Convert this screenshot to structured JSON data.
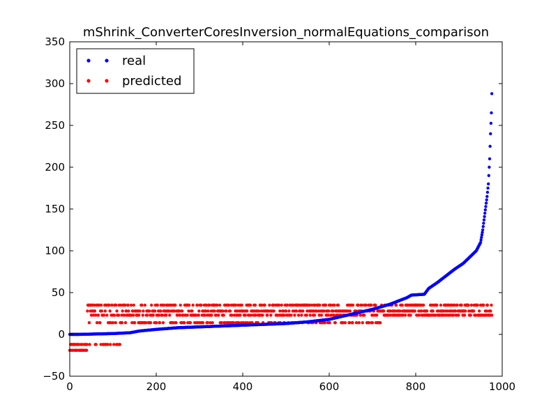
{
  "chart_data": {
    "type": "scatter",
    "title": "mShrink_ConverterCoresInversion_normalEquations_comparison",
    "xlabel": "",
    "ylabel": "",
    "xlim": [
      0,
      1000
    ],
    "ylim": [
      -50,
      350
    ],
    "xticks": [
      0,
      200,
      400,
      600,
      800,
      1000
    ],
    "yticks": [
      -50,
      0,
      50,
      100,
      150,
      200,
      250,
      300,
      350
    ],
    "grid": false,
    "legend_position": "top-left",
    "x_count": 977,
    "series": [
      {
        "name": "real",
        "color": "#0000ff",
        "marker": "circle",
        "description": "sorted ascending values",
        "anchors": [
          [
            0,
            0
          ],
          [
            20,
            0
          ],
          [
            100,
            1
          ],
          [
            140,
            2
          ],
          [
            160,
            4
          ],
          [
            200,
            6
          ],
          [
            250,
            8
          ],
          [
            300,
            9
          ],
          [
            350,
            10
          ],
          [
            400,
            11
          ],
          [
            450,
            12
          ],
          [
            500,
            13
          ],
          [
            550,
            15
          ],
          [
            600,
            18
          ],
          [
            650,
            24
          ],
          [
            700,
            30
          ],
          [
            720,
            33
          ],
          [
            740,
            36
          ],
          [
            760,
            40
          ],
          [
            780,
            44
          ],
          [
            790,
            47
          ],
          [
            820,
            48
          ],
          [
            830,
            55
          ],
          [
            850,
            62
          ],
          [
            870,
            70
          ],
          [
            890,
            78
          ],
          [
            910,
            85
          ],
          [
            930,
            95
          ],
          [
            940,
            100
          ],
          [
            950,
            110
          ],
          [
            955,
            125
          ],
          [
            960,
            145
          ],
          [
            965,
            165
          ],
          [
            968,
            180
          ],
          [
            971,
            210
          ],
          [
            973,
            240
          ],
          [
            975,
            265
          ],
          [
            977,
            311
          ]
        ]
      },
      {
        "name": "predicted",
        "color": "#ff0000",
        "marker": "circle",
        "levels": [
          -19,
          -12,
          14,
          23,
          28,
          35
        ],
        "level_ranges": [
          [
            0,
            40,
            [
              -19,
              -12
            ]
          ],
          [
            40,
            120,
            [
              14,
              23,
              28,
              35,
              -12
            ]
          ],
          [
            120,
            200,
            [
              14,
              23,
              28,
              35
            ]
          ],
          [
            200,
            560,
            [
              14,
              23,
              28,
              35
            ]
          ],
          [
            560,
            720,
            [
              14,
              23,
              28,
              35
            ]
          ],
          [
            720,
            977,
            [
              23,
              28,
              35
            ]
          ]
        ]
      }
    ]
  }
}
